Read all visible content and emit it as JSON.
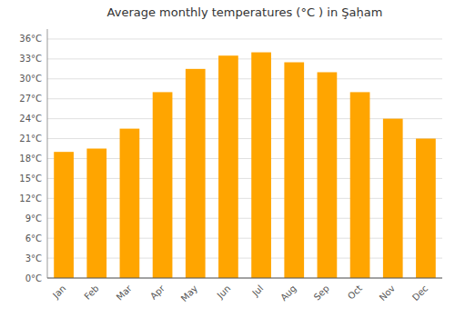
{
  "chart_data": {
    "type": "bar",
    "title": "Average monthly temperatures (°C ) in Şaḥam",
    "categories": [
      "Jan",
      "Feb",
      "Mar",
      "Apr",
      "May",
      "Jun",
      "Jul",
      "Aug",
      "Sep",
      "Oct",
      "Nov",
      "Dec"
    ],
    "values": [
      19.0,
      19.5,
      22.5,
      28.0,
      31.5,
      33.5,
      34.0,
      32.5,
      31.0,
      28.0,
      24.0,
      21.0
    ],
    "color": "#FFA500",
    "ylim": [
      0,
      37.5
    ],
    "yticks": [
      {
        "value": 0,
        "label": "0°C"
      },
      {
        "value": 3,
        "label": "3°C"
      },
      {
        "value": 6,
        "label": "6°C"
      },
      {
        "value": 9,
        "label": "9°C"
      },
      {
        "value": 12,
        "label": "12°C"
      },
      {
        "value": 15,
        "label": "15°C"
      },
      {
        "value": 18,
        "label": "18°C"
      },
      {
        "value": 21,
        "label": "21°C"
      },
      {
        "value": 24,
        "label": "24°C"
      },
      {
        "value": 27,
        "label": "27°C"
      },
      {
        "value": 30,
        "label": "30°C"
      },
      {
        "value": 33,
        "label": "33°C"
      },
      {
        "value": 36,
        "label": "36°C"
      }
    ],
    "grid": true
  }
}
